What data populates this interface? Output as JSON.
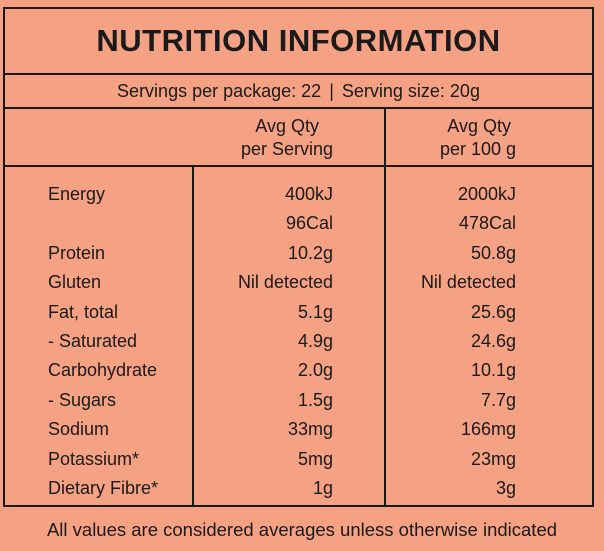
{
  "title": "NUTRITION INFORMATION",
  "servings": {
    "per_package": "Servings per package: 22",
    "separator": "|",
    "size": "Serving size: 20g"
  },
  "columns": {
    "per_serving_line1": "Avg Qty",
    "per_serving_line2": "per Serving",
    "per_100g_line1": "Avg Qty",
    "per_100g_line2": "per 100 g"
  },
  "rows": [
    {
      "label": "Energy",
      "per_serving": "400kJ",
      "per_100g": "2000kJ"
    },
    {
      "label": "",
      "per_serving": "96Cal",
      "per_100g": "478Cal"
    },
    {
      "label": "Protein",
      "per_serving": "10.2g",
      "per_100g": "50.8g"
    },
    {
      "label": "Gluten",
      "per_serving": "Nil detected",
      "per_100g": "Nil detected"
    },
    {
      "label": "Fat, total",
      "per_serving": "5.1g",
      "per_100g": "25.6g"
    },
    {
      "label": "- Saturated",
      "per_serving": "4.9g",
      "per_100g": "24.6g"
    },
    {
      "label": "Carbohydrate",
      "per_serving": "2.0g",
      "per_100g": "10.1g"
    },
    {
      "label": "- Sugars",
      "per_serving": "1.5g",
      "per_100g": "7.7g"
    },
    {
      "label": "Sodium",
      "per_serving": "33mg",
      "per_100g": "166mg"
    },
    {
      "label": "Potassium*",
      "per_serving": "5mg",
      "per_100g": "23mg"
    },
    {
      "label": "Dietary Fibre*",
      "per_serving": "1g",
      "per_100g": "3g"
    }
  ],
  "footer": "All values are considered averages unless otherwise indicated",
  "colors": {
    "background": "#f5a184",
    "ink": "#1a1a1a"
  }
}
